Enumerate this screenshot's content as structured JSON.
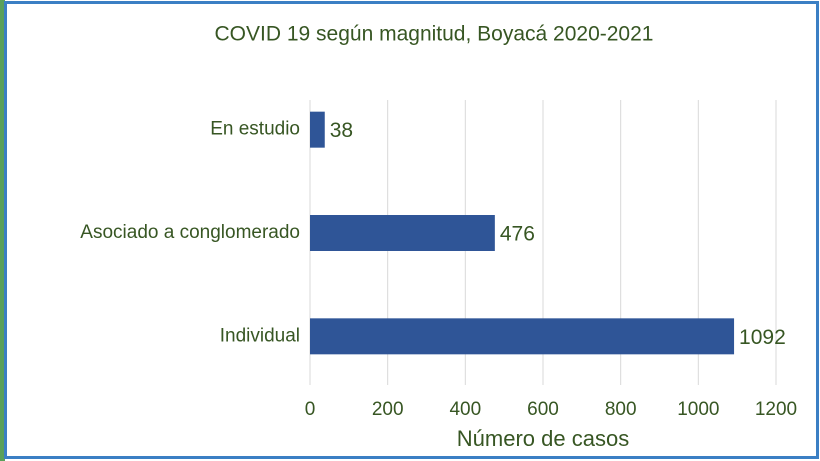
{
  "chart_data": {
    "type": "hbar",
    "title": "COVID 19 según magnitud, Boyacá 2020-2021",
    "categories": [
      "En estudio",
      "Asociado a conglomerado",
      "Individual"
    ],
    "values": [
      38,
      476,
      1092
    ],
    "color": "#2f5597",
    "xlim": [
      0,
      1200
    ],
    "xticks": [
      0,
      200,
      400,
      600,
      800,
      1000,
      1200
    ],
    "xlabel": "Número de casos",
    "grid": true
  }
}
